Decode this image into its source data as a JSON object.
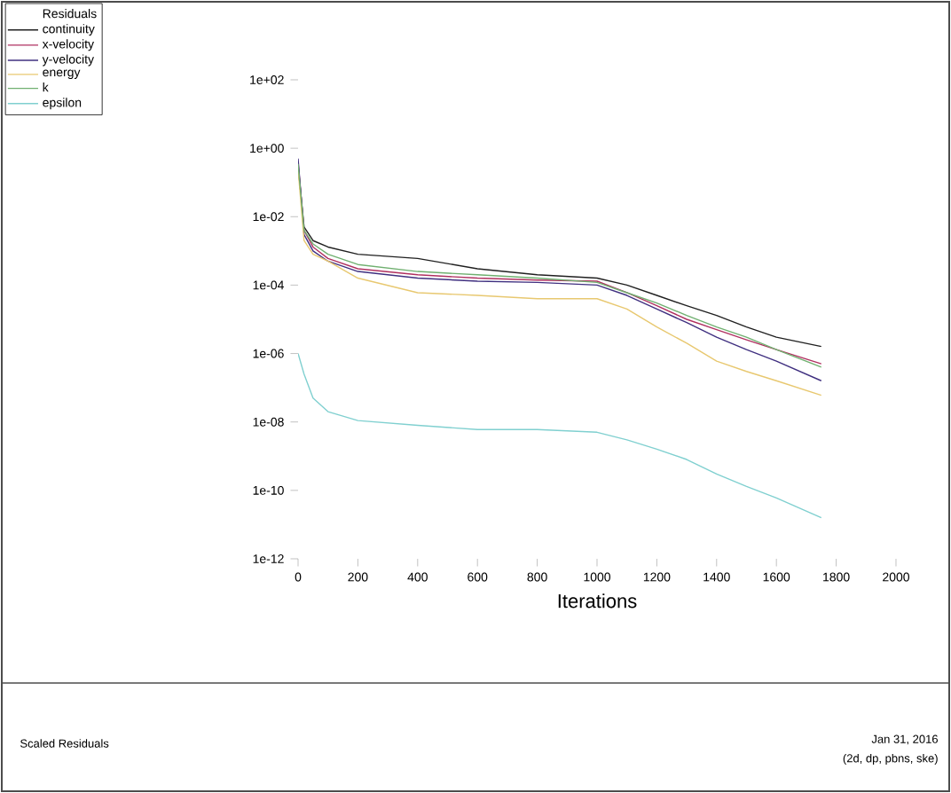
{
  "chart_data": {
    "type": "line",
    "xlabel": "Iterations",
    "legend_title": "Residuals",
    "xlim": [
      0,
      2000
    ],
    "xticks": [
      0,
      200,
      400,
      600,
      800,
      1000,
      1200,
      1400,
      1600,
      1800,
      2000
    ],
    "ylim": [
      1e-12,
      100
    ],
    "yticks": [
      {
        "value": 100,
        "label": "1e+02"
      },
      {
        "value": 1,
        "label": "1e+00"
      },
      {
        "value": 0.01,
        "label": "1e-02"
      },
      {
        "value": 0.0001,
        "label": "1e-04"
      },
      {
        "value": 1e-06,
        "label": "1e-06"
      },
      {
        "value": 1e-08,
        "label": "1e-08"
      },
      {
        "value": 1e-10,
        "label": "1e-10"
      },
      {
        "value": 1e-12,
        "label": "1e-12"
      }
    ],
    "log": "y",
    "grid": false,
    "legend": "top left",
    "marker": "none",
    "line_style": "solid",
    "x": [
      0,
      20,
      50,
      100,
      200,
      400,
      600,
      800,
      1000,
      1100,
      1200,
      1300,
      1400,
      1500,
      1600,
      1750
    ],
    "series": [
      {
        "name": "continuity",
        "color": "#202020",
        "values": [
          0.3,
          0.005,
          0.002,
          0.0013,
          0.0008,
          0.0006,
          0.0003,
          0.0002,
          0.00016,
          0.0001,
          5e-05,
          2.5e-05,
          1.3e-05,
          6e-06,
          3e-06,
          1.6e-06
        ]
      },
      {
        "name": "x-velocity",
        "color": "#b03060",
        "values": [
          0.4,
          0.004,
          0.0013,
          0.0006,
          0.0003,
          0.0002,
          0.00016,
          0.00014,
          0.00013,
          6e-05,
          2.5e-05,
          1e-05,
          5e-06,
          2.5e-06,
          1.3e-06,
          5e-07
        ]
      },
      {
        "name": "y-velocity",
        "color": "#403080",
        "values": [
          0.5,
          0.003,
          0.001,
          0.0005,
          0.00025,
          0.00016,
          0.00013,
          0.00012,
          0.0001,
          5e-05,
          2e-05,
          8e-06,
          3e-06,
          1.3e-06,
          6e-07,
          1.6e-07
        ]
      },
      {
        "name": "energy",
        "color": "#e8c870",
        "values": [
          0.25,
          0.002,
          0.0008,
          0.0005,
          0.00016,
          6e-05,
          5e-05,
          4e-05,
          4e-05,
          2e-05,
          6e-06,
          2e-06,
          6e-07,
          3e-07,
          1.6e-07,
          6e-08
        ]
      },
      {
        "name": "k",
        "color": "#70b070",
        "values": [
          0.35,
          0.004,
          0.0016,
          0.0008,
          0.0004,
          0.00025,
          0.0002,
          0.00016,
          0.00012,
          6e-05,
          3e-05,
          1.3e-05,
          6e-06,
          3e-06,
          1.3e-06,
          4e-07
        ]
      },
      {
        "name": "epsilon",
        "color": "#80d0d0",
        "values": [
          1e-06,
          2.5e-07,
          5e-08,
          2e-08,
          1.1e-08,
          8e-09,
          6e-09,
          6e-09,
          5e-09,
          3e-09,
          1.6e-09,
          8e-10,
          3e-10,
          1.3e-10,
          6e-11,
          1.6e-11
        ]
      }
    ],
    "annotations": [
      "Scaled Residuals",
      "Jan 31, 2016",
      "(2d, dp, pbns, ske)"
    ]
  }
}
